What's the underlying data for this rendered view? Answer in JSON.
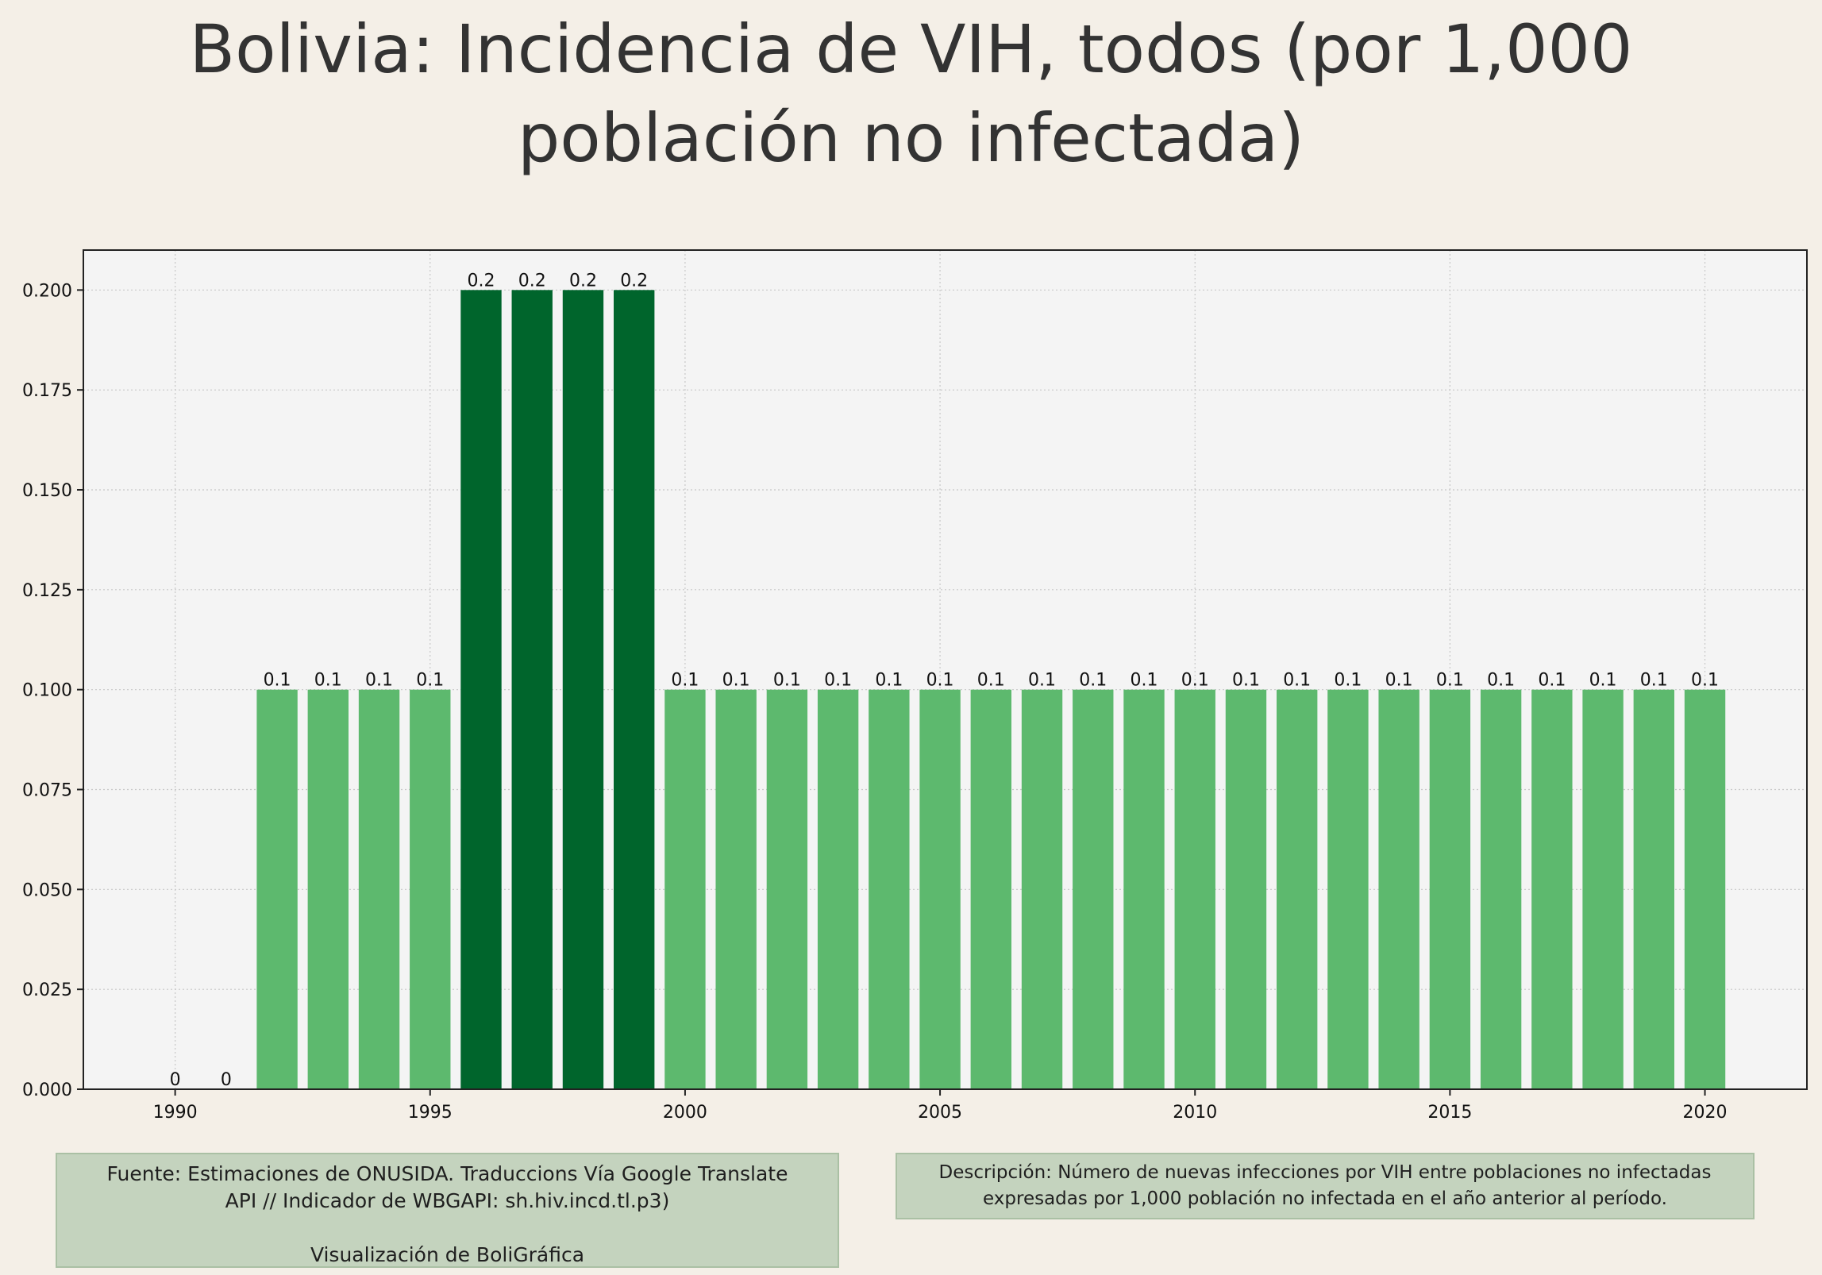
{
  "chart_data": {
    "type": "bar",
    "title": "Bolivia:  Incidencia de VIH, todos (por 1,000 población no infectada)",
    "xlabel": "",
    "ylabel": "",
    "x": [
      1990,
      1991,
      1992,
      1993,
      1994,
      1995,
      1996,
      1997,
      1998,
      1999,
      2000,
      2001,
      2002,
      2003,
      2004,
      2005,
      2006,
      2007,
      2008,
      2009,
      2010,
      2011,
      2012,
      2013,
      2014,
      2015,
      2016,
      2017,
      2018,
      2019,
      2020
    ],
    "values": [
      0,
      0,
      0.1,
      0.1,
      0.1,
      0.1,
      0.2,
      0.2,
      0.2,
      0.2,
      0.1,
      0.1,
      0.1,
      0.1,
      0.1,
      0.1,
      0.1,
      0.1,
      0.1,
      0.1,
      0.1,
      0.1,
      0.1,
      0.1,
      0.1,
      0.1,
      0.1,
      0.1,
      0.1,
      0.1,
      0.1
    ],
    "data_labels": [
      "0",
      "0",
      "0.1",
      "0.1",
      "0.1",
      "0.1",
      "0.2",
      "0.2",
      "0.2",
      "0.2",
      "0.1",
      "0.1",
      "0.1",
      "0.1",
      "0.1",
      "0.1",
      "0.1",
      "0.1",
      "0.1",
      "0.1",
      "0.1",
      "0.1",
      "0.1",
      "0.1",
      "0.1",
      "0.1",
      "0.1",
      "0.1",
      "0.1",
      "0.1",
      "0.1"
    ],
    "xlim": [
      1988.2,
      2022.0
    ],
    "ylim": [
      0,
      0.21
    ],
    "x_ticks": [
      1990,
      1995,
      2000,
      2005,
      2010,
      2015,
      2020
    ],
    "y_ticks": [
      0.0,
      0.025,
      0.05,
      0.075,
      0.1,
      0.125,
      0.15,
      0.175,
      0.2
    ],
    "y_tick_labels": [
      "0.000",
      "0.025",
      "0.050",
      "0.075",
      "0.100",
      "0.125",
      "0.150",
      "0.175",
      "0.200"
    ],
    "grid": true,
    "colors": {
      "high": "#00652c",
      "normal": "#5db96e",
      "plot_bg": "#f4f4f4",
      "grid": "#c8c8c8",
      "axis": "#222222"
    }
  },
  "notes": {
    "source_lines": [
      "Fuente: Estimaciones de ONUSIDA. Traduccions Vía Google Translate",
      "API // Indicador de WBGAPI: sh.hiv.incd.tl.p3)"
    ],
    "visualization": "Visualización de BoliGráfica",
    "description_lines": [
      "Descripción: Número de nuevas infecciones por VIH entre poblaciones no infectadas",
      "expresadas por 1,000 población no infectada en el año anterior al período."
    ]
  }
}
